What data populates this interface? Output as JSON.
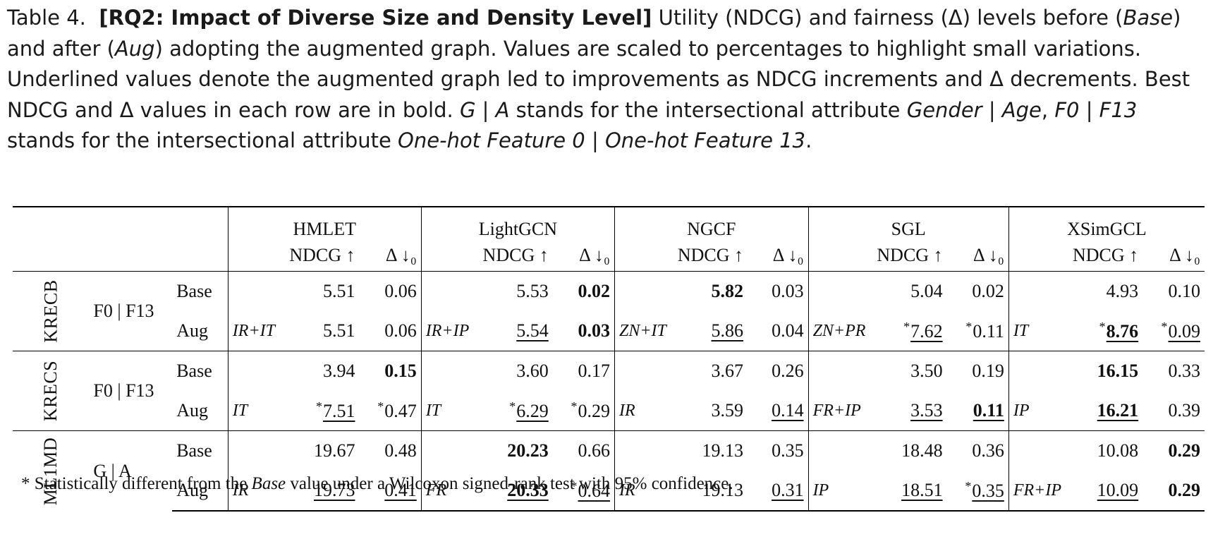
{
  "caption": {
    "label": "Table 4.",
    "bold_title": "[RQ2: Impact of Diverse Size and Density Level]",
    "text_1": " Utility (NDCG) and fairness (Δ) levels before (",
    "base_word": "Base",
    "text_2": ") and after (",
    "aug_word": "Aug",
    "text_3": ") adopting the augmented graph. Values are scaled to percentages to highlight small variations. Underlined values denote the augmented graph led to improvements as NDCG increments and Δ decrements. Best NDCG and Δ values in each row are in bold. ",
    "ga_abbrev": "G | A",
    "text_4": " stands for the intersectional attribute ",
    "ga_full": "Gender | Age",
    "text_5": ", ",
    "ff_abbrev": "F0 | F13",
    "text_6": " stands for the intersectional attribute ",
    "ff_full": "One-hot Feature 0 | One-hot Feature 13",
    "text_7": "."
  },
  "header": {
    "models": [
      "HMLET",
      "LightGCN",
      "NGCF",
      "SGL",
      "XSimGCL"
    ],
    "ndcg": "NDCG ↑",
    "delta": "Δ ↓₀"
  },
  "groups": [
    {
      "dataset": "KRECB",
      "attribute": "F0 | F13",
      "rows": [
        {
          "label": "Base",
          "cells": [
            {
              "pre": "",
              "ndcg": {
                "v": "5.51"
              },
              "delta": {
                "v": "0.06"
              }
            },
            {
              "pre": "",
              "ndcg": {
                "v": "5.53"
              },
              "delta": {
                "v": "0.02",
                "b": true
              }
            },
            {
              "pre": "",
              "ndcg": {
                "v": "5.82",
                "b": true
              },
              "delta": {
                "v": "0.03"
              }
            },
            {
              "pre": "",
              "ndcg": {
                "v": "5.04"
              },
              "delta": {
                "v": "0.02"
              }
            },
            {
              "pre": "",
              "ndcg": {
                "v": "4.93"
              },
              "delta": {
                "v": "0.10"
              }
            }
          ]
        },
        {
          "label": "Aug",
          "cells": [
            {
              "pre": "IR+IT",
              "ndcg": {
                "v": "5.51"
              },
              "delta": {
                "v": "0.06"
              }
            },
            {
              "pre": "IR+IP",
              "ndcg": {
                "v": "5.54",
                "u": true
              },
              "delta": {
                "v": "0.03",
                "b": true
              }
            },
            {
              "pre": "ZN+IT",
              "ndcg": {
                "v": "5.86",
                "u": true
              },
              "delta": {
                "v": "0.04"
              }
            },
            {
              "pre": "ZN+PR",
              "ndcg": {
                "v": "7.62",
                "u": true,
                "s": "*"
              },
              "delta": {
                "v": "0.11",
                "s": "*"
              }
            },
            {
              "pre": "IT",
              "ndcg": {
                "v": "8.76",
                "u": true,
                "b": true,
                "s": "*"
              },
              "delta": {
                "v": "0.09",
                "u": true,
                "s": "*"
              }
            }
          ]
        }
      ]
    },
    {
      "dataset": "KRECS",
      "attribute": "F0 | F13",
      "rows": [
        {
          "label": "Base",
          "cells": [
            {
              "pre": "",
              "ndcg": {
                "v": "3.94"
              },
              "delta": {
                "v": "0.15",
                "b": true
              }
            },
            {
              "pre": "",
              "ndcg": {
                "v": "3.60"
              },
              "delta": {
                "v": "0.17"
              }
            },
            {
              "pre": "",
              "ndcg": {
                "v": "3.67"
              },
              "delta": {
                "v": "0.26"
              }
            },
            {
              "pre": "",
              "ndcg": {
                "v": "3.50"
              },
              "delta": {
                "v": "0.19"
              }
            },
            {
              "pre": "",
              "ndcg": {
                "v": "16.15",
                "b": true
              },
              "delta": {
                "v": "0.33"
              }
            }
          ]
        },
        {
          "label": "Aug",
          "cells": [
            {
              "pre": "IT",
              "ndcg": {
                "v": "7.51",
                "u": true,
                "s": "*"
              },
              "delta": {
                "v": "0.47",
                "s": "*"
              }
            },
            {
              "pre": "IT",
              "ndcg": {
                "v": "6.29",
                "u": true,
                "s": "*"
              },
              "delta": {
                "v": "0.29",
                "s": "*"
              }
            },
            {
              "pre": "IR",
              "ndcg": {
                "v": "3.59"
              },
              "delta": {
                "v": "0.14",
                "u": true
              }
            },
            {
              "pre": "FR+IP",
              "ndcg": {
                "v": "3.53",
                "u": true
              },
              "delta": {
                "v": "0.11",
                "u": true,
                "b": true
              }
            },
            {
              "pre": "IP",
              "ndcg": {
                "v": "16.21",
                "u": true,
                "b": true
              },
              "delta": {
                "v": "0.39"
              }
            }
          ]
        }
      ]
    },
    {
      "dataset": "ML1MD",
      "attribute": "G | A",
      "rows": [
        {
          "label": "Base",
          "cells": [
            {
              "pre": "",
              "ndcg": {
                "v": "19.67"
              },
              "delta": {
                "v": "0.48"
              }
            },
            {
              "pre": "",
              "ndcg": {
                "v": "20.23",
                "b": true
              },
              "delta": {
                "v": "0.66"
              }
            },
            {
              "pre": "",
              "ndcg": {
                "v": "19.13"
              },
              "delta": {
                "v": "0.35"
              }
            },
            {
              "pre": "",
              "ndcg": {
                "v": "18.48"
              },
              "delta": {
                "v": "0.36"
              }
            },
            {
              "pre": "",
              "ndcg": {
                "v": "10.08"
              },
              "delta": {
                "v": "0.29",
                "b": true
              }
            }
          ]
        },
        {
          "label": "Aug",
          "cells": [
            {
              "pre": "IR",
              "ndcg": {
                "v": "19.73",
                "u": true
              },
              "delta": {
                "v": "0.41",
                "u": true
              }
            },
            {
              "pre": "FR",
              "ndcg": {
                "v": "20.33",
                "u": true,
                "b": true
              },
              "delta": {
                "v": "0.64",
                "u": true,
                "s": "*"
              }
            },
            {
              "pre": "IR",
              "ndcg": {
                "v": "19.13"
              },
              "delta": {
                "v": "0.31",
                "u": true
              }
            },
            {
              "pre": "IP",
              "ndcg": {
                "v": "18.51",
                "u": true
              },
              "delta": {
                "v": "0.35",
                "u": true,
                "s": "*"
              }
            },
            {
              "pre": "FR+IP",
              "ndcg": {
                "v": "10.09",
                "u": true
              },
              "delta": {
                "v": "0.29",
                "b": true
              }
            }
          ]
        }
      ]
    }
  ],
  "footnote": {
    "star": "*",
    "text_1": " Statistically different from the ",
    "base_word": "Base",
    "text_2": " value under a Wilcoxon signed-rank test with 95% confidence."
  }
}
